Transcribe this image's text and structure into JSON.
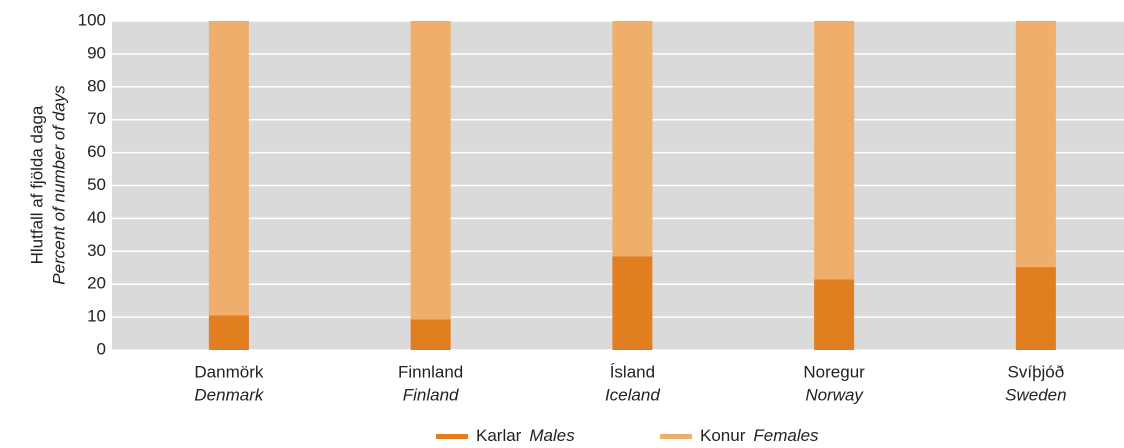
{
  "chart_data": {
    "type": "stacked_bar",
    "y_label": "Hlutfall af fjölda daga",
    "y_label_en": "Percent of number of days",
    "categories": [
      "Danmörk",
      "Finnland",
      "Ísland",
      "Noregur",
      "Svíþjóð"
    ],
    "categories_en": [
      "Denmark",
      "Finland",
      "Iceland",
      "Norway",
      "Sweden"
    ],
    "series": [
      {
        "name": "Karlar",
        "name_en": "Males",
        "color": "#e07e20",
        "values": [
          10.5,
          9.3,
          28.5,
          21.5,
          25.2
        ]
      },
      {
        "name": "Konur",
        "name_en": "Females",
        "color": "#f0ae6c",
        "values": [
          89.5,
          90.7,
          71.5,
          78.5,
          74.8
        ]
      }
    ],
    "ylim": [
      0,
      100
    ],
    "yticks": [
      0,
      10,
      20,
      30,
      40,
      50,
      60,
      70,
      80,
      90,
      100
    ],
    "grid": true,
    "legend": "bottom"
  }
}
